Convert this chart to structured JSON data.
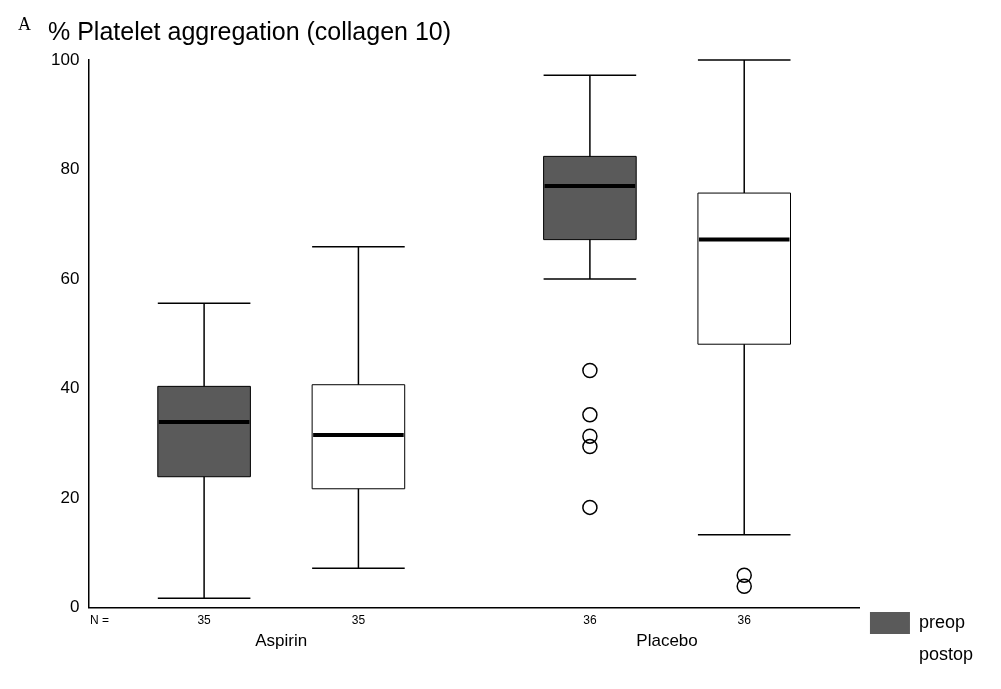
{
  "chart_data": {
    "type": "box",
    "title": "% Platelet aggregation (collagen 10)",
    "categories": [
      "Aspirin",
      "Placebo"
    ],
    "series": [
      {
        "name": "preop",
        "color": "#5a5a5a",
        "boxes": [
          {
            "low": 1.7,
            "q1": 23.9,
            "median": 33.9,
            "q3": 40.4,
            "high": 55.6
          },
          {
            "low": 60,
            "q1": 67.2,
            "median": 77,
            "q3": 82.4,
            "high": 97.2,
            "outliers": [
              43.3,
              35.2,
              31.3,
              29.4,
              18.3
            ]
          }
        ]
      },
      {
        "name": "postop",
        "color": "#ffffff",
        "boxes": [
          {
            "low": 7.2,
            "q1": 21.7,
            "median": 31.5,
            "q3": 40.7,
            "high": 65.9
          },
          {
            "low": 13.3,
            "q1": 48.1,
            "median": 67.2,
            "q3": 75.7,
            "high": 100,
            "outliers": [
              5.9,
              3.9
            ]
          }
        ]
      }
    ],
    "ylim": [
      0,
      100
    ],
    "yticks": [
      0,
      20,
      40,
      60,
      80,
      100
    ],
    "grid": false,
    "legend": "bottom right",
    "annotations": [
      "A",
      "N =",
      "35",
      "35",
      "36",
      "36"
    ]
  }
}
